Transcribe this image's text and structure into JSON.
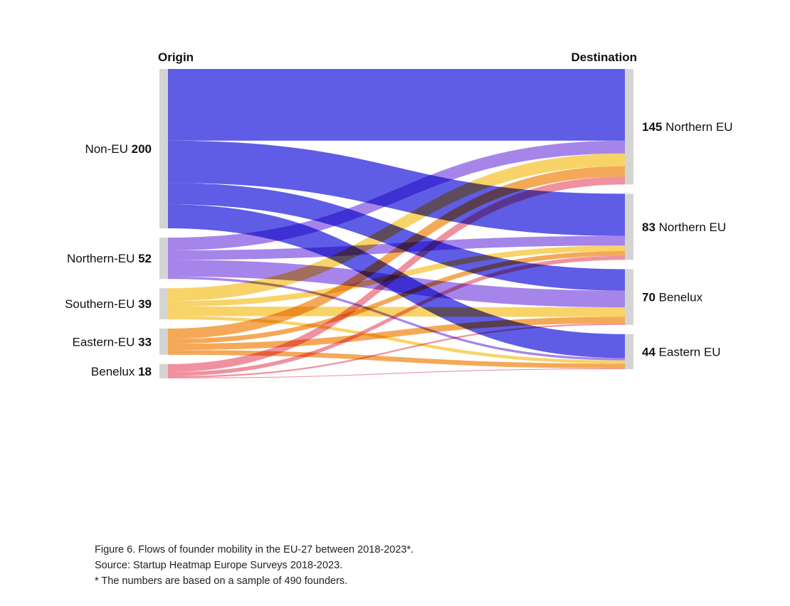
{
  "chart_data": {
    "type": "sankey",
    "origin_header": "Origin",
    "destination_header": "Destination",
    "sources": [
      {
        "id": "nonEU",
        "name": "Non-EU",
        "value": 200,
        "color": "#5f5ce6"
      },
      {
        "id": "northernEU",
        "name": "Northern-EU",
        "value": 52,
        "color": "#9e7be8"
      },
      {
        "id": "southernEU",
        "name": "Southern-EU",
        "value": 39,
        "color": "#f7cf5a"
      },
      {
        "id": "easternEU",
        "name": "Eastern-EU",
        "value": 33,
        "color": "#f3a24a"
      },
      {
        "id": "benelux",
        "name": "Benelux",
        "value": 18,
        "color": "#ef8898"
      }
    ],
    "targets": [
      {
        "id": "northernEU_a",
        "name": "Northern EU",
        "value": 145
      },
      {
        "id": "northernEU_b",
        "name": "Northern EU",
        "value": 83
      },
      {
        "id": "benelux",
        "name": "Benelux",
        "value": 70
      },
      {
        "id": "easternEU",
        "name": "Eastern EU",
        "value": 44
      }
    ],
    "links": [
      {
        "source": "nonEU",
        "target": "northernEU_a",
        "value": 90
      },
      {
        "source": "nonEU",
        "target": "northernEU_b",
        "value": 53
      },
      {
        "source": "nonEU",
        "target": "benelux",
        "value": 27
      },
      {
        "source": "nonEU",
        "target": "easternEU",
        "value": 30
      },
      {
        "source": "northernEU",
        "target": "northernEU_a",
        "value": 16
      },
      {
        "source": "northernEU",
        "target": "northernEU_b",
        "value": 12
      },
      {
        "source": "northernEU",
        "target": "benelux",
        "value": 21
      },
      {
        "source": "northernEU",
        "target": "easternEU",
        "value": 3
      },
      {
        "source": "southernEU",
        "target": "northernEU_a",
        "value": 16
      },
      {
        "source": "southernEU",
        "target": "northernEU_b",
        "value": 7
      },
      {
        "source": "southernEU",
        "target": "benelux",
        "value": 12
      },
      {
        "source": "southernEU",
        "target": "easternEU",
        "value": 4
      },
      {
        "source": "easternEU",
        "target": "northernEU_a",
        "value": 13
      },
      {
        "source": "easternEU",
        "target": "northernEU_b",
        "value": 6
      },
      {
        "source": "easternEU",
        "target": "benelux",
        "value": 8
      },
      {
        "source": "easternEU",
        "target": "easternEU",
        "value": 6
      },
      {
        "source": "benelux",
        "target": "northernEU_a",
        "value": 10
      },
      {
        "source": "benelux",
        "target": "northernEU_b",
        "value": 5
      },
      {
        "source": "benelux",
        "target": "benelux",
        "value": 2
      },
      {
        "source": "benelux",
        "target": "easternEU",
        "value": 1
      }
    ]
  },
  "caption": {
    "line1": "Figure 6. Flows of founder mobility in the EU-27 between 2018-2023*.",
    "line2": "Source: Startup Heatmap Europe Surveys 2018-2023.",
    "line3": "* The numbers are based on a sample of 490 founders."
  },
  "colors": {
    "node_bar": "#d4d4d4",
    "text": "#111111"
  }
}
